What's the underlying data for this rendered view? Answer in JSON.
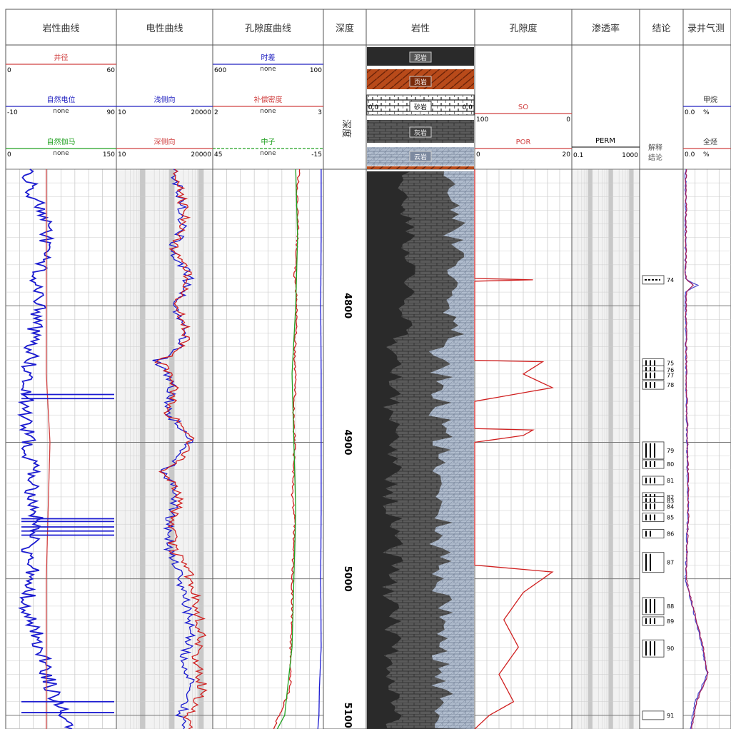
{
  "header": {
    "tracks": [
      "岩性曲线",
      "电性曲线",
      "孔隙度曲线",
      "深度",
      "岩性",
      "孔隙度",
      "渗透率",
      "结论",
      "录井气测"
    ]
  },
  "track1": {
    "curves": [
      {
        "name": "井径",
        "left": "0",
        "unit": "",
        "right": "60",
        "color": "#d04040"
      },
      {
        "name": "自然电位",
        "left": "-10",
        "unit": "none",
        "right": "90",
        "color": "#2020c0"
      },
      {
        "name": "自然伽马",
        "left": "0",
        "unit": "none",
        "right": "150",
        "color": "#20a020"
      }
    ]
  },
  "track2": {
    "curves": [
      {
        "name": "",
        "left": "",
        "unit": "",
        "right": "",
        "color": "#2020c0"
      },
      {
        "name": "浅侧向",
        "left": "10",
        "unit": "",
        "right": "20000",
        "color": "#2020c0"
      },
      {
        "name": "深侧向",
        "left": "10",
        "unit": "",
        "right": "20000",
        "color": "#d04040"
      }
    ]
  },
  "track3": {
    "curves": [
      {
        "name": "时差",
        "left": "600",
        "unit": "none",
        "right": "100",
        "color": "#2020c0"
      },
      {
        "name": "补偿密度",
        "left": "2",
        "unit": "none",
        "right": "3",
        "color": "#d04040"
      },
      {
        "name": "中子",
        "left": "45",
        "unit": "none",
        "right": "-15",
        "color": "#20a020"
      }
    ]
  },
  "depth_track": {
    "label": "深度"
  },
  "lith_legend": {
    "items": [
      "泥岩",
      "页岩",
      "砂岩",
      "灰岩",
      "云岩"
    ],
    "sand_left": "0.0",
    "sand_right": "0.0",
    "colors": {
      "泥岩": "#3a3a3a",
      "页岩": "#b84a1a",
      "砂岩": "#ffffff",
      "灰岩": "#6e6e6e",
      "云岩": "#a8b4c8"
    }
  },
  "track6": {
    "curves": [
      {
        "name": "SO",
        "left": "100",
        "unit": "",
        "right": "0",
        "color": "#d04040"
      },
      {
        "name": "POR",
        "left": "0",
        "unit": "",
        "right": "20",
        "color": "#d04040"
      }
    ]
  },
  "track7": {
    "curve": "PERM",
    "left": "0.1",
    "right": "1000"
  },
  "track8": {
    "label1": "解释",
    "label2": "结论"
  },
  "track9": {
    "curves": [
      {
        "name": "甲烷",
        "left": "0.0",
        "unit": "%",
        "color": "#2020c0"
      },
      {
        "name": "全烃",
        "left": "0.0",
        "unit": "%",
        "color": "#d04040"
      }
    ]
  },
  "chart_data": {
    "type": "line",
    "title": "",
    "depth_unit": "m",
    "depth_range": [
      4700,
      5110
    ],
    "depth_ticks": [
      4800,
      4900,
      5000,
      5100
    ],
    "series": [
      {
        "name": "自然电位",
        "track": 1,
        "scale": [
          -10,
          90
        ],
        "values": [
          [
            4700,
            10
          ],
          [
            4720,
            15
          ],
          [
            4740,
            30
          ],
          [
            4760,
            25
          ],
          [
            4780,
            18
          ],
          [
            4800,
            20
          ],
          [
            4820,
            15
          ],
          [
            4840,
            12
          ],
          [
            4860,
            10
          ],
          [
            4880,
            8
          ],
          [
            4900,
            10
          ],
          [
            4920,
            14
          ],
          [
            4940,
            12
          ],
          [
            4960,
            20
          ],
          [
            4980,
            10
          ],
          [
            5000,
            15
          ],
          [
            5020,
            8
          ],
          [
            5040,
            18
          ],
          [
            5060,
            25
          ],
          [
            5080,
            30
          ],
          [
            5100,
            45
          ],
          [
            5110,
            50
          ]
        ]
      },
      {
        "name": "井径",
        "track": 1,
        "scale": [
          0,
          60
        ],
        "values": [
          [
            4700,
            22
          ],
          [
            4750,
            22
          ],
          [
            4800,
            22
          ],
          [
            4850,
            22
          ],
          [
            4900,
            24
          ],
          [
            4950,
            23
          ],
          [
            5000,
            22
          ],
          [
            5050,
            22
          ],
          [
            5100,
            22
          ],
          [
            5110,
            22
          ]
        ]
      },
      {
        "name": "浅侧向",
        "track": 2,
        "scale": [
          10,
          20000
        ],
        "values": [
          [
            4700,
            1000
          ],
          [
            4720,
            1500
          ],
          [
            4740,
            2000
          ],
          [
            4760,
            600
          ],
          [
            4780,
            3000
          ],
          [
            4800,
            900
          ],
          [
            4820,
            2500
          ],
          [
            4840,
            200
          ],
          [
            4860,
            800
          ],
          [
            4880,
            500
          ],
          [
            4900,
            3000
          ],
          [
            4920,
            300
          ],
          [
            4940,
            1200
          ],
          [
            4960,
            600
          ],
          [
            4980,
            700
          ],
          [
            5000,
            1500
          ],
          [
            5020,
            2500
          ],
          [
            5040,
            3500
          ],
          [
            5060,
            2000
          ],
          [
            5080,
            4000
          ],
          [
            5100,
            1500
          ],
          [
            5110,
            2000
          ]
        ]
      },
      {
        "name": "深侧向",
        "track": 2,
        "scale": [
          10,
          20000
        ],
        "values": [
          [
            4700,
            1200
          ],
          [
            4720,
            1800
          ],
          [
            4740,
            2200
          ],
          [
            4760,
            700
          ],
          [
            4780,
            3200
          ],
          [
            4800,
            1000
          ],
          [
            4820,
            2800
          ],
          [
            4840,
            250
          ],
          [
            4860,
            1000
          ],
          [
            4880,
            600
          ],
          [
            4900,
            3500
          ],
          [
            4920,
            350
          ],
          [
            4940,
            1500
          ],
          [
            4960,
            800
          ],
          [
            4980,
            900
          ],
          [
            5000,
            3500
          ],
          [
            5020,
            6000
          ],
          [
            5040,
            8000
          ],
          [
            5060,
            5000
          ],
          [
            5080,
            9000
          ],
          [
            5100,
            2500
          ],
          [
            5110,
            3000
          ]
        ]
      },
      {
        "name": "时差",
        "track": 3,
        "scale": [
          600,
          100
        ],
        "values": [
          [
            4700,
            110
          ],
          [
            4750,
            110
          ],
          [
            4800,
            112
          ],
          [
            4850,
            110
          ],
          [
            4900,
            110
          ],
          [
            4950,
            110
          ],
          [
            5000,
            112
          ],
          [
            5050,
            110
          ],
          [
            5080,
            118
          ],
          [
            5100,
            120
          ],
          [
            5110,
            125
          ]
        ]
      },
      {
        "name": "补偿密度",
        "track": 3,
        "scale": [
          2,
          3
        ],
        "values": [
          [
            4700,
            2.78
          ],
          [
            4720,
            2.76
          ],
          [
            4740,
            2.77
          ],
          [
            4760,
            2.76
          ],
          [
            4780,
            2.74
          ],
          [
            4800,
            2.76
          ],
          [
            4820,
            2.75
          ],
          [
            4840,
            2.74
          ],
          [
            4860,
            2.75
          ],
          [
            4880,
            2.73
          ],
          [
            4900,
            2.74
          ],
          [
            4920,
            2.73
          ],
          [
            4940,
            2.72
          ],
          [
            4960,
            2.74
          ],
          [
            4980,
            2.73
          ],
          [
            5000,
            2.72
          ],
          [
            5020,
            2.72
          ],
          [
            5040,
            2.71
          ],
          [
            5060,
            2.7
          ],
          [
            5080,
            2.7
          ],
          [
            5100,
            2.6
          ],
          [
            5110,
            2.55
          ]
        ]
      },
      {
        "name": "中子",
        "track": 3,
        "scale": [
          45,
          -15
        ],
        "values": [
          [
            4700,
            0
          ],
          [
            4750,
            -1
          ],
          [
            4800,
            0
          ],
          [
            4850,
            2
          ],
          [
            4900,
            1
          ],
          [
            4950,
            0
          ],
          [
            5000,
            1
          ],
          [
            5050,
            2
          ],
          [
            5100,
            6
          ],
          [
            5110,
            10
          ]
        ]
      },
      {
        "name": "POR",
        "track": 6,
        "scale": [
          0,
          20
        ],
        "values": [
          [
            4700,
            0
          ],
          [
            4780,
            0
          ],
          [
            4781,
            12
          ],
          [
            4782,
            0
          ],
          [
            4840,
            0
          ],
          [
            4841,
            14
          ],
          [
            4850,
            10
          ],
          [
            4860,
            16
          ],
          [
            4870,
            0
          ],
          [
            4890,
            0
          ],
          [
            4891,
            12
          ],
          [
            4895,
            10
          ],
          [
            4900,
            0
          ],
          [
            4990,
            0
          ],
          [
            4995,
            16
          ],
          [
            5010,
            10
          ],
          [
            5030,
            6
          ],
          [
            5050,
            9
          ],
          [
            5070,
            5
          ],
          [
            5090,
            8
          ],
          [
            5100,
            3
          ],
          [
            5110,
            0
          ]
        ]
      },
      {
        "name": "甲烷",
        "track": 9,
        "scale": [
          0,
          100
        ],
        "values": [
          [
            4700,
            5
          ],
          [
            4750,
            5
          ],
          [
            4780,
            4
          ],
          [
            4785,
            30
          ],
          [
            4790,
            5
          ],
          [
            4850,
            6
          ],
          [
            4900,
            8
          ],
          [
            4950,
            10
          ],
          [
            5000,
            5
          ],
          [
            5050,
            40
          ],
          [
            5070,
            50
          ],
          [
            5090,
            25
          ],
          [
            5110,
            15
          ]
        ]
      },
      {
        "name": "全烃",
        "track": 9,
        "scale": [
          0,
          100
        ],
        "values": [
          [
            4700,
            6
          ],
          [
            4750,
            6
          ],
          [
            4780,
            5
          ],
          [
            4785,
            20
          ],
          [
            4790,
            6
          ],
          [
            4850,
            7
          ],
          [
            4900,
            9
          ],
          [
            4950,
            11
          ],
          [
            5000,
            6
          ],
          [
            5050,
            42
          ],
          [
            5070,
            52
          ],
          [
            5090,
            28
          ],
          [
            5110,
            18
          ]
        ]
      }
    ],
    "interpretation_layers": [
      "74",
      "75",
      "76",
      "77",
      "78",
      "79",
      "80",
      "81",
      "82",
      "83",
      "84",
      "85",
      "86",
      "87",
      "88",
      "89",
      "90",
      "91"
    ]
  }
}
